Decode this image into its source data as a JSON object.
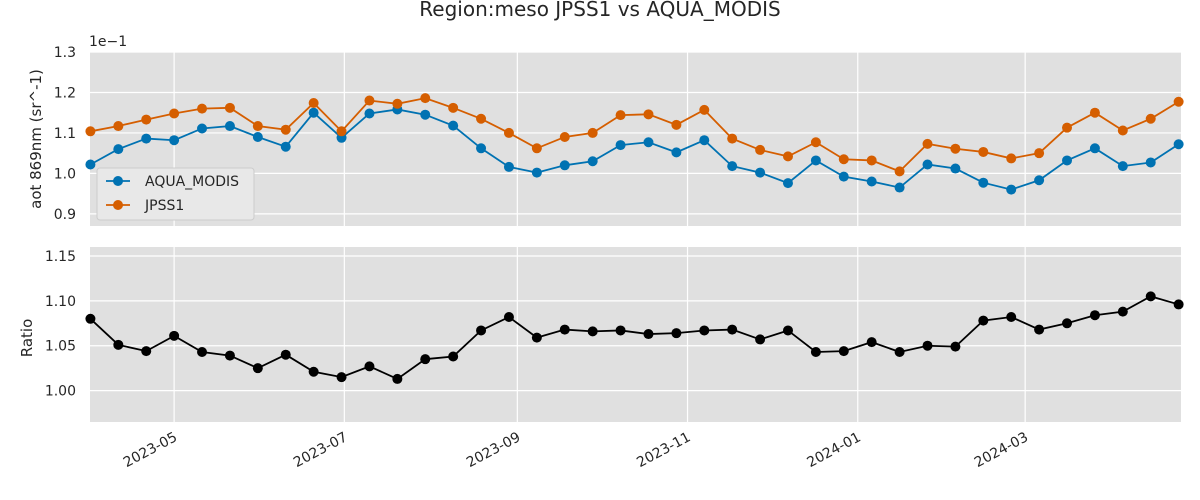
{
  "chart_data": [
    {
      "type": "line",
      "title": "Region:meso JPSS1 vs AQUA_MODIS",
      "ylabel": "aot 869nm (sr^-1)",
      "offset_text": "1e−1",
      "ylim": [
        0.87,
        1.3
      ],
      "yticks": [
        0.9,
        1.0,
        1.1,
        1.2,
        1.3
      ],
      "ytick_labels": [
        "0.9",
        "1.0",
        "1.1",
        "1.2",
        "1.3"
      ],
      "grid": true,
      "legend_position": "lower-left",
      "x": [
        "2023-04-01",
        "2023-04-11",
        "2023-04-21",
        "2023-05-01",
        "2023-05-11",
        "2023-05-21",
        "2023-05-31",
        "2023-06-10",
        "2023-06-20",
        "2023-06-30",
        "2023-07-10",
        "2023-07-20",
        "2023-07-30",
        "2023-08-09",
        "2023-08-19",
        "2023-08-29",
        "2023-09-08",
        "2023-09-18",
        "2023-09-28",
        "2023-10-08",
        "2023-10-18",
        "2023-10-28",
        "2023-11-07",
        "2023-11-17",
        "2023-11-27",
        "2023-12-07",
        "2023-12-17",
        "2023-12-27",
        "2024-01-06",
        "2024-01-16",
        "2024-01-26",
        "2024-02-05",
        "2024-02-15",
        "2024-02-25",
        "2024-03-06",
        "2024-03-16",
        "2024-03-26",
        "2024-04-05",
        "2024-04-15",
        "2024-04-25"
      ],
      "series": [
        {
          "name": "AQUA_MODIS",
          "color": "#0072b2",
          "values": [
            1.022,
            1.06,
            1.086,
            1.082,
            1.111,
            1.117,
            1.09,
            1.066,
            1.15,
            1.088,
            1.148,
            1.158,
            1.145,
            1.118,
            1.062,
            1.016,
            1.002,
            1.02,
            1.03,
            1.07,
            1.077,
            1.052,
            1.082,
            1.018,
            1.002,
            0.976,
            1.032,
            0.992,
            0.98,
            0.965,
            1.022,
            1.012,
            0.977,
            0.96,
            0.983,
            1.032,
            1.062,
            1.018,
            1.027,
            1.072
          ]
        },
        {
          "name": "JPSS1",
          "color": "#d55e00",
          "values": [
            1.104,
            1.117,
            1.133,
            1.148,
            1.16,
            1.162,
            1.117,
            1.108,
            1.174,
            1.104,
            1.18,
            1.172,
            1.186,
            1.162,
            1.135,
            1.1,
            1.062,
            1.09,
            1.1,
            1.144,
            1.146,
            1.12,
            1.157,
            1.086,
            1.058,
            1.042,
            1.077,
            1.035,
            1.032,
            1.005,
            1.073,
            1.061,
            1.053,
            1.037,
            1.05,
            1.113,
            1.15,
            1.106,
            1.135,
            1.177
          ]
        }
      ]
    },
    {
      "type": "line",
      "ylabel": "Ratio",
      "ylim": [
        0.965,
        1.16
      ],
      "yticks": [
        1.0,
        1.05,
        1.1,
        1.15
      ],
      "ytick_labels": [
        "1.00",
        "1.05",
        "1.10",
        "1.15"
      ],
      "xtick_labels": [
        "2023-05",
        "2023-07",
        "2023-09",
        "2023-11",
        "2024-01",
        "2024-03"
      ],
      "grid": true,
      "series": [
        {
          "color": "#000000",
          "values": [
            1.08,
            1.051,
            1.044,
            1.061,
            1.043,
            1.039,
            1.025,
            1.04,
            1.021,
            1.015,
            1.027,
            1.013,
            1.035,
            1.038,
            1.067,
            1.082,
            1.059,
            1.068,
            1.066,
            1.067,
            1.063,
            1.064,
            1.067,
            1.068,
            1.057,
            1.067,
            1.043,
            1.044,
            1.054,
            1.043,
            1.05,
            1.049,
            1.078,
            1.082,
            1.068,
            1.075,
            1.084,
            1.088,
            1.105,
            1.096
          ]
        }
      ]
    }
  ]
}
